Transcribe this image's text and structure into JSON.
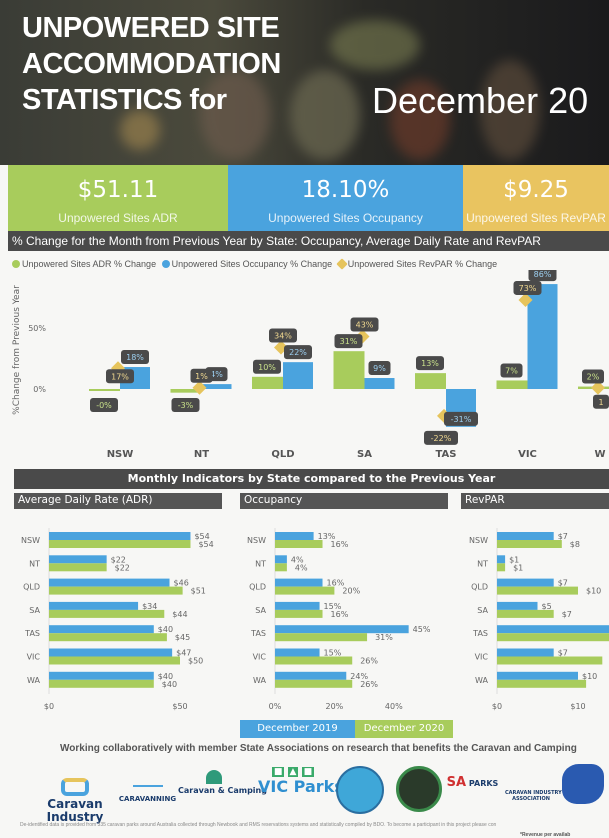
{
  "header": {
    "title_lines": [
      "UNPOWERED SITE",
      "ACCOMMODATION",
      "STATISTICS for"
    ],
    "date": "December 20"
  },
  "kpis": [
    {
      "value": "$51.11",
      "label": "Unpowered Sites ADR",
      "color": "#a8cc5c"
    },
    {
      "value": "18.10%",
      "label": "Unpowered Sites Occupancy",
      "color": "#4aa3de"
    },
    {
      "value": "$9.25",
      "label": "Unpowered Sites RevPAR",
      "color": "#e9c460"
    }
  ],
  "colors": {
    "adr": "#a8cc5c",
    "occupancy": "#4aa3de",
    "revpar": "#e6c45c",
    "dec2019": "#4aa3de",
    "dec2020": "#a8cc5c",
    "header_bar": "#4a4a4a"
  },
  "chart_data": [
    {
      "type": "bar",
      "title": "% Change for the Month from Previous Year by State: Occupancy, Average Daily Rate and RevPAR",
      "ylabel": "%Change from Previous Year",
      "legend": "top-left",
      "yticks": [
        "0%",
        "50%"
      ],
      "categories": [
        "NSW",
        "NT",
        "QLD",
        "SA",
        "TAS",
        "VIC",
        "W"
      ],
      "series": [
        {
          "name": "Unpowered Sites ADR % Change",
          "marker": "bar",
          "values": [
            -0.3,
            -3,
            10,
            31,
            13,
            7,
            2
          ],
          "labels": [
            "-0%",
            "-3%",
            "10%",
            "31%",
            "13%",
            "7%",
            "2%"
          ]
        },
        {
          "name": "Unpowered Sites Occupancy % Change",
          "marker": "bar",
          "values": [
            18,
            4,
            22,
            9,
            -31,
            86,
            null
          ],
          "labels": [
            "18%",
            "4%",
            "22%",
            "9%",
            "-31%",
            "86%",
            ""
          ]
        },
        {
          "name": "Unpowered Sites RevPAR % Change",
          "marker": "diamond",
          "values": [
            17,
            1,
            34,
            43,
            -22,
            73,
            1
          ],
          "labels": [
            "17%",
            "1%",
            "34%",
            "43%",
            "-22%",
            "73%",
            "1"
          ]
        }
      ]
    },
    {
      "type": "bar",
      "orientation": "horizontal",
      "title": "Average Daily Rate (ADR)",
      "categories": [
        "NSW",
        "NT",
        "QLD",
        "SA",
        "TAS",
        "VIC",
        "WA"
      ],
      "xticks": [
        "$0",
        "$50"
      ],
      "xlim": [
        0,
        60
      ],
      "series": [
        {
          "name": "December 2019",
          "values": [
            54,
            22,
            46,
            34,
            40,
            47,
            40
          ],
          "labels": [
            "$54",
            "$22",
            "$46",
            "$34",
            "$40",
            "$47",
            "$40"
          ]
        },
        {
          "name": "December 2020",
          "values": [
            54,
            22,
            51,
            44,
            45,
            50,
            40
          ],
          "labels": [
            "$54",
            "$22",
            "$51",
            "$44",
            "$45",
            "$50",
            "$40"
          ]
        }
      ]
    },
    {
      "type": "bar",
      "orientation": "horizontal",
      "title": "Occupancy",
      "categories": [
        "NSW",
        "NT",
        "QLD",
        "SA",
        "TAS",
        "VIC",
        "WA"
      ],
      "xticks": [
        "0%",
        "20%",
        "40%"
      ],
      "xlim": [
        0,
        55
      ],
      "series": [
        {
          "name": "December 2019",
          "values": [
            13,
            4,
            16,
            15,
            45,
            15,
            24
          ],
          "labels": [
            "13%",
            "4%",
            "16%",
            "15%",
            "45%",
            "15%",
            "24%"
          ]
        },
        {
          "name": "December 2020",
          "values": [
            16,
            4,
            20,
            16,
            31,
            26,
            26
          ],
          "labels": [
            "16%",
            "4%",
            "20%",
            "16%",
            "31%",
            "26%",
            "26%"
          ]
        }
      ]
    },
    {
      "type": "bar",
      "orientation": "horizontal",
      "title": "RevPAR",
      "categories": [
        "NSW",
        "NT",
        "QLD",
        "SA",
        "TAS",
        "VIC",
        "WA"
      ],
      "xticks": [
        "$0",
        "$10"
      ],
      "xlim": [
        0,
        14
      ],
      "series": [
        {
          "name": "December 2019",
          "values": [
            7,
            1,
            7,
            5,
            14,
            7,
            10
          ],
          "labels": [
            "$7",
            "$1",
            "$7",
            "$5",
            "",
            "$7",
            "$10"
          ]
        },
        {
          "name": "December 2020",
          "values": [
            8,
            1,
            10,
            7,
            14,
            13,
            11
          ],
          "labels": [
            "$8",
            "$1",
            "$10",
            "$7",
            "",
            "",
            "$11"
          ]
        }
      ]
    }
  ],
  "section_title": "Monthly Indicators by State compared to the Previous Year",
  "legend2": [
    "December 2019",
    "December 2020"
  ],
  "collab": "Working collaboratively with member State Associations on research that benefits the Caravan and Camping",
  "logos": [
    "Caravan Industry Association of Australia",
    "Caravanning Queensland",
    "Caravan & Camping Industry Association NSW",
    "VIC Parks",
    "Caravanning Tasmania",
    "Caravan & Camping",
    "SA Parks",
    "Caravan Industry Association",
    "Caravanning"
  ],
  "footer": "De-identified data is provided from 335 caravan parks around Australia collected through Newbook and RMS reservations systems and statistically compiled by BDO. To become a participant in this project please con",
  "footer2": "*Revenue per availab"
}
